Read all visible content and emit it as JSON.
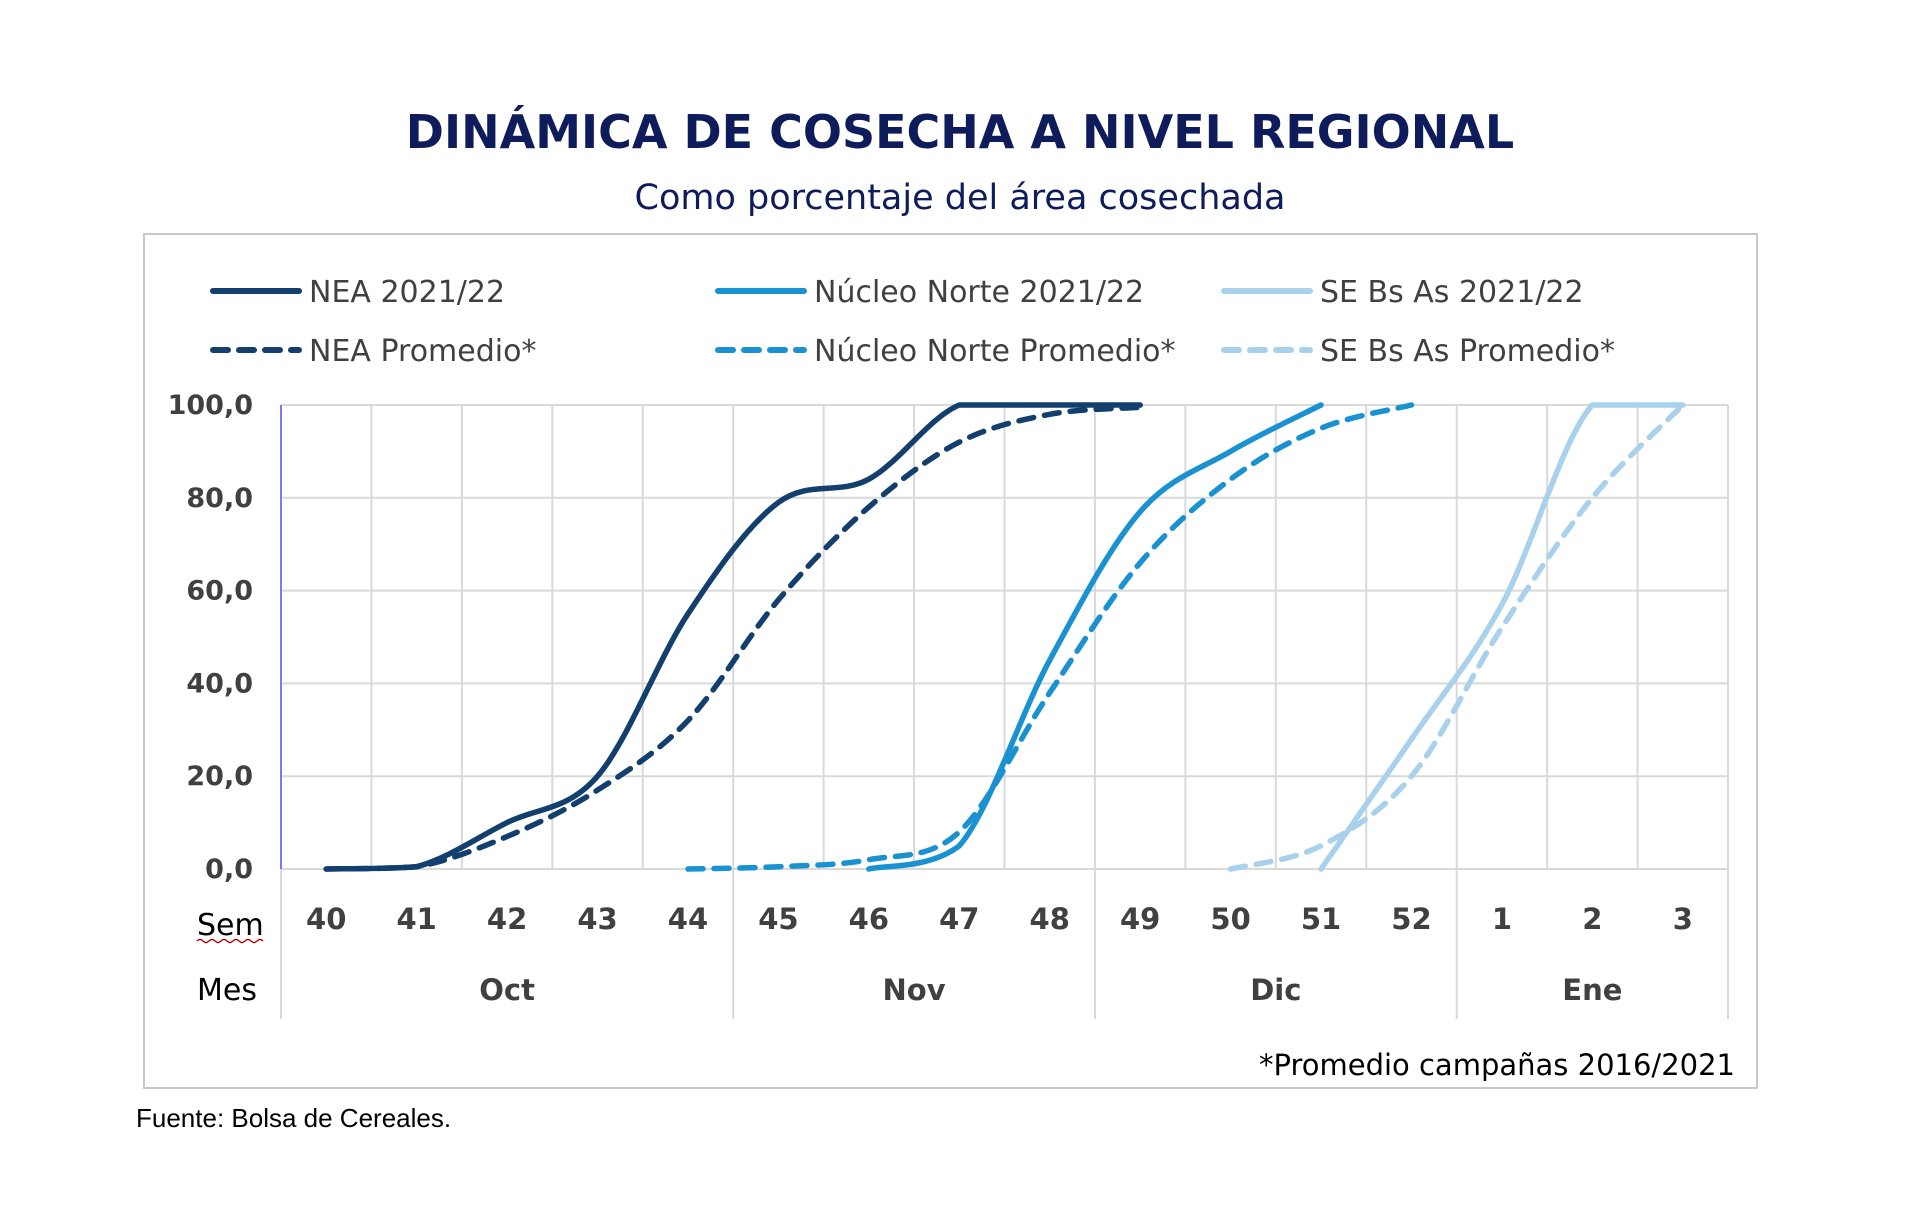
{
  "chart_data": {
    "type": "line",
    "title": "DINÁMICA DE COSECHA A NIVEL REGIONAL",
    "subtitle": "Como porcentaje del área cosechada",
    "x_row_label": "Sem",
    "month_row_label": "Mes",
    "x": [
      "40",
      "41",
      "42",
      "43",
      "44",
      "45",
      "46",
      "47",
      "48",
      "49",
      "50",
      "51",
      "52",
      "1",
      "2",
      "3"
    ],
    "months": [
      {
        "label": "Oct",
        "weeks": [
          "40",
          "41",
          "42",
          "43",
          "44"
        ]
      },
      {
        "label": "Nov",
        "weeks": [
          "45",
          "46",
          "47",
          "48"
        ]
      },
      {
        "label": "Dic",
        "weeks": [
          "49",
          "50",
          "51",
          "52"
        ]
      },
      {
        "label": "Ene",
        "weeks": [
          "1",
          "2",
          "3"
        ]
      }
    ],
    "y_ticks": [
      "0,0",
      "20,0",
      "40,0",
      "60,0",
      "80,0",
      "100,0"
    ],
    "ylim": [
      0,
      100
    ],
    "grid": true,
    "legend_position": "top",
    "footnote": "*Promedio campañas 2016/2021",
    "series": [
      {
        "name": "NEA 2021/22",
        "color": "#123f6d",
        "dashed": false,
        "values": [
          0,
          0.5,
          10,
          20,
          55,
          79,
          84,
          100,
          100,
          100,
          null,
          null,
          null,
          null,
          null,
          null
        ]
      },
      {
        "name": "Núcleo Norte 2021/22",
        "color": "#1a91d0",
        "dashed": false,
        "values": [
          null,
          null,
          null,
          null,
          null,
          null,
          0,
          5,
          45,
          77,
          90,
          100,
          null,
          null,
          null,
          null
        ]
      },
      {
        "name": "SE Bs As 2021/22",
        "color": "#a9d1ec",
        "dashed": false,
        "values": [
          null,
          null,
          null,
          null,
          null,
          null,
          null,
          null,
          null,
          null,
          null,
          0,
          28,
          57,
          100,
          100
        ]
      },
      {
        "name": "NEA Promedio*",
        "color": "#123f6d",
        "dashed": true,
        "values": [
          0,
          0.5,
          7,
          17,
          32,
          58,
          78,
          92,
          98,
          99.5,
          null,
          null,
          null,
          null,
          null,
          null
        ]
      },
      {
        "name": "Núcleo Norte Promedio*",
        "color": "#1a91d0",
        "dashed": true,
        "values": [
          null,
          null,
          null,
          null,
          0,
          0.5,
          2,
          8,
          38,
          66,
          84,
          95,
          100,
          null,
          null,
          null
        ]
      },
      {
        "name": "SE Bs As Promedio*",
        "color": "#a9d1ec",
        "dashed": true,
        "values": [
          null,
          null,
          null,
          null,
          null,
          null,
          null,
          null,
          null,
          null,
          0,
          5,
          20,
          52,
          80,
          100
        ]
      }
    ]
  },
  "source": "Fuente: Bolsa de Cereales."
}
